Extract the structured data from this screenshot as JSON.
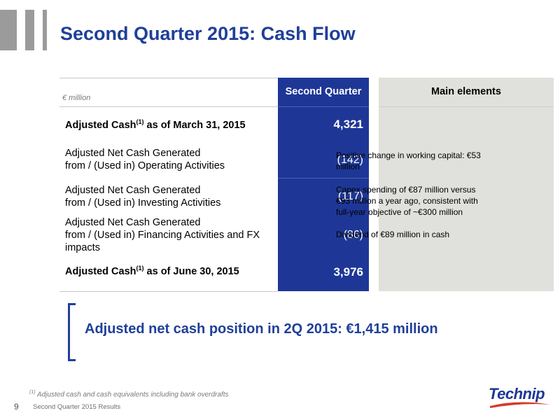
{
  "slide": {
    "title": "Second Quarter 2015: Cash Flow",
    "page_number": "9",
    "footer": "Second Quarter 2015 Results",
    "footnote_marker": "(1)",
    "footnote": "Adjusted cash and cash equivalents including bank overdrafts",
    "logo": "Technip"
  },
  "table": {
    "unit_label": "€ million",
    "col_header": "Second Quarter",
    "main_header": "Main elements",
    "rows": [
      {
        "label_a": "Adjusted Cash",
        "sup": "(1)",
        "label_b": " as of March 31, 2015",
        "value": "4,321"
      },
      {
        "line1": "Adjusted Net Cash Generated",
        "line2": "from / (Used in) Operating Activities",
        "value": "(142)"
      },
      {
        "line1": "Adjusted Net Cash Generated",
        "line2": "from / (Used in) Investing Activities",
        "value": "(117)"
      },
      {
        "line1": "Adjusted Net Cash Generated",
        "line2": "from / (Used in) Financing Activities and FX",
        "line3": "impacts",
        "value": "(86)"
      },
      {
        "label_a": "Adjusted Cash",
        "sup": "(1)",
        "label_b": " as of June 30, 2015",
        "value": "3,976"
      }
    ],
    "bullets": [
      "Positive change in working capital: €53 million",
      "Capex spending of €87 million versus €93 million a year ago, consistent with full-year objective of ~€300 million",
      "Dividend of €89 million in cash"
    ]
  },
  "highlight": "Adjusted net cash position in 2Q 2015: €1,415 million",
  "colors": {
    "brand_blue": "#1f3f99",
    "table_blue": "#1e3796",
    "panel_grey": "#e0e0dc"
  }
}
